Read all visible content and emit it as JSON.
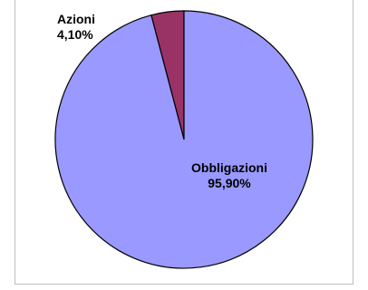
{
  "chart_data": {
    "type": "pie",
    "slices": [
      {
        "label": "Azioni",
        "value": 4.1,
        "value_label": "4,10%",
        "color": "#993366"
      },
      {
        "label": "Obbligazioni",
        "value": 95.9,
        "value_label": "95,90%",
        "color": "#9999ff"
      }
    ],
    "legend": "none",
    "data_labels": "label and percentage"
  }
}
